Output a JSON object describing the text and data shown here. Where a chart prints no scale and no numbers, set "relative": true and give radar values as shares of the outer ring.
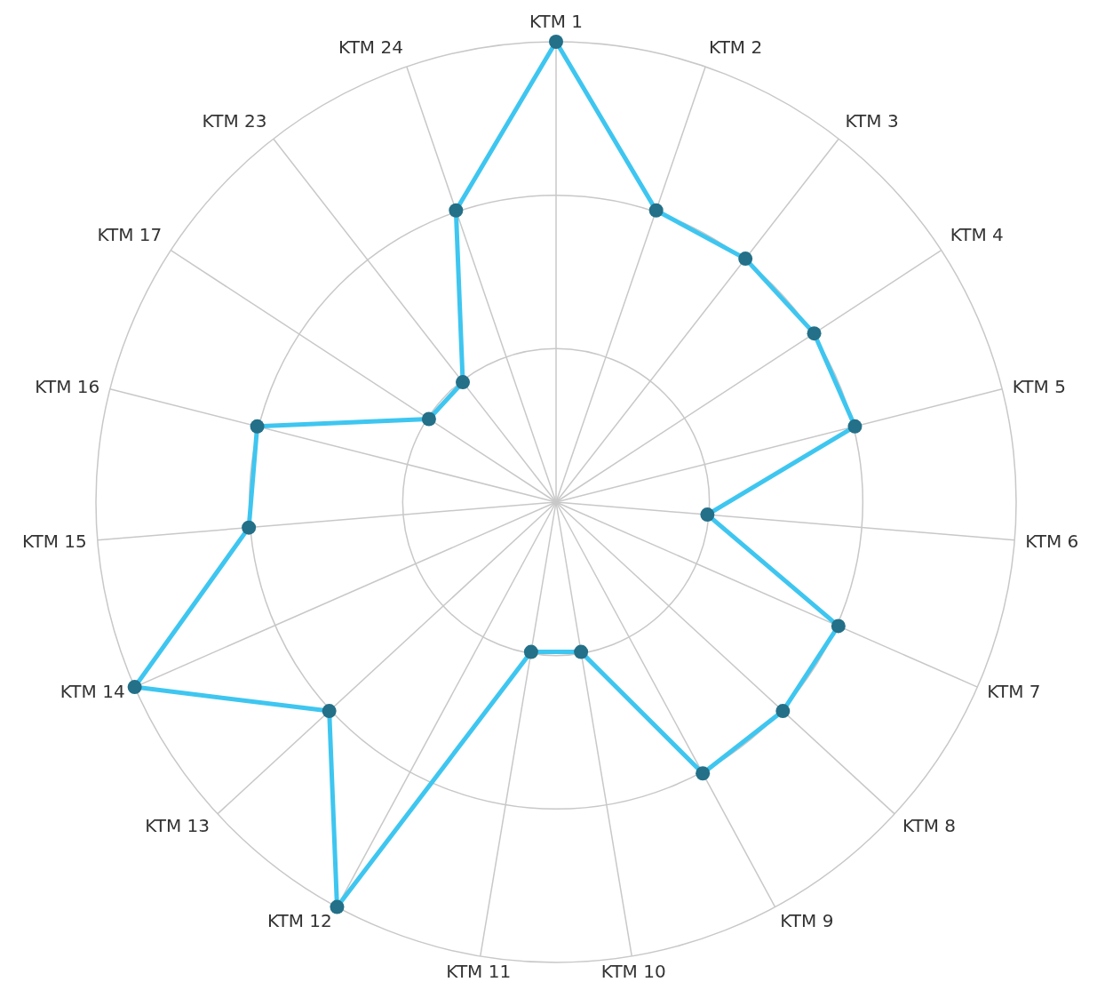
{
  "chart_data": {
    "type": "radar",
    "relative": true,
    "grid": true,
    "marker": "circle",
    "line_style": "solid",
    "categories": [
      "KTM 1",
      "KTM 2",
      "KTM 3",
      "KTM 4",
      "KTM 5",
      "KTM 6",
      "KTM 7",
      "KTM 8",
      "KTM 9",
      "KTM 10",
      "KTM 11",
      "KTM 12",
      "KTM 13",
      "KTM 14",
      "KTM 15",
      "KTM 16",
      "KTM 17",
      "KTM 23",
      "KTM 24"
    ],
    "series": [
      {
        "color": "#3ec6f0",
        "values": [
          1,
          0.67,
          0.67,
          0.67,
          0.67,
          0.33,
          0.67,
          0.67,
          0.67,
          0.33,
          0.33,
          1,
          0.67,
          1,
          0.67,
          0.67,
          0.33,
          0.33,
          0.67
        ]
      }
    ]
  }
}
